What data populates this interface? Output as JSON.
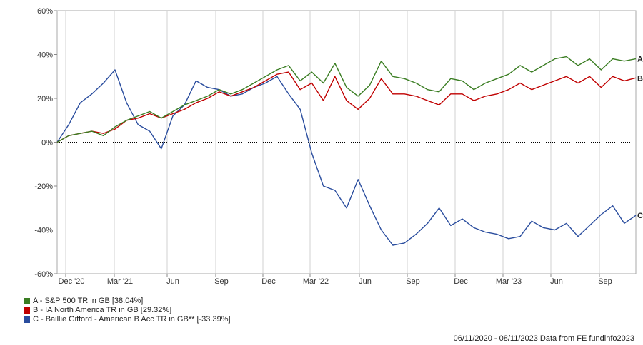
{
  "chart_data": {
    "type": "line",
    "x_tick_labels": [
      "Dec '20",
      "Mar '21",
      "Jun",
      "Sep",
      "Dec",
      "Mar '22",
      "Jun",
      "Sep",
      "Dec",
      "Mar '23",
      "Jun",
      "Sep"
    ],
    "y_tick_labels": [
      "60%",
      "40%",
      "20%",
      "0%",
      "-20%",
      "-40%",
      "-60%"
    ],
    "ylim": [
      -60,
      60
    ],
    "x_range": [
      "2020-11-06",
      "2023-11-08"
    ],
    "grid": "vertical",
    "zero_line": "dotted",
    "legend_position": "bottom-left",
    "series": [
      {
        "name": "A - S&P 500 TR in GB [38.04%]",
        "end_label": "A",
        "color": "#3a7d22",
        "values": [
          [
            0,
            0
          ],
          [
            0.02,
            3
          ],
          [
            0.04,
            4
          ],
          [
            0.06,
            5
          ],
          [
            0.08,
            3
          ],
          [
            0.1,
            7
          ],
          [
            0.12,
            10
          ],
          [
            0.14,
            12
          ],
          [
            0.16,
            14
          ],
          [
            0.18,
            11
          ],
          [
            0.2,
            14
          ],
          [
            0.22,
            17
          ],
          [
            0.24,
            19
          ],
          [
            0.26,
            21
          ],
          [
            0.28,
            24
          ],
          [
            0.3,
            22
          ],
          [
            0.32,
            24
          ],
          [
            0.34,
            27
          ],
          [
            0.36,
            30
          ],
          [
            0.38,
            33
          ],
          [
            0.4,
            35
          ],
          [
            0.42,
            28
          ],
          [
            0.44,
            32
          ],
          [
            0.46,
            27
          ],
          [
            0.48,
            36
          ],
          [
            0.5,
            25
          ],
          [
            0.52,
            21
          ],
          [
            0.54,
            26
          ],
          [
            0.56,
            37
          ],
          [
            0.58,
            30
          ],
          [
            0.6,
            29
          ],
          [
            0.62,
            27
          ],
          [
            0.64,
            24
          ],
          [
            0.66,
            23
          ],
          [
            0.68,
            29
          ],
          [
            0.7,
            28
          ],
          [
            0.72,
            24
          ],
          [
            0.74,
            27
          ],
          [
            0.76,
            29
          ],
          [
            0.78,
            31
          ],
          [
            0.8,
            35
          ],
          [
            0.82,
            32
          ],
          [
            0.84,
            35
          ],
          [
            0.86,
            38
          ],
          [
            0.88,
            39
          ],
          [
            0.9,
            35
          ],
          [
            0.92,
            38
          ],
          [
            0.94,
            33
          ],
          [
            0.96,
            38
          ],
          [
            0.98,
            37
          ],
          [
            1.0,
            38.04
          ]
        ]
      },
      {
        "name": "B - IA North America TR in GB [29.32%]",
        "end_label": "B",
        "color": "#c00000",
        "values": [
          [
            0,
            0
          ],
          [
            0.02,
            3
          ],
          [
            0.04,
            4
          ],
          [
            0.06,
            5
          ],
          [
            0.08,
            4
          ],
          [
            0.1,
            6
          ],
          [
            0.12,
            10
          ],
          [
            0.14,
            11
          ],
          [
            0.16,
            13
          ],
          [
            0.18,
            11
          ],
          [
            0.2,
            13
          ],
          [
            0.22,
            15
          ],
          [
            0.24,
            18
          ],
          [
            0.26,
            20
          ],
          [
            0.28,
            23
          ],
          [
            0.3,
            21
          ],
          [
            0.32,
            23
          ],
          [
            0.34,
            25
          ],
          [
            0.36,
            28
          ],
          [
            0.38,
            31
          ],
          [
            0.4,
            32
          ],
          [
            0.42,
            24
          ],
          [
            0.44,
            27
          ],
          [
            0.46,
            19
          ],
          [
            0.48,
            30
          ],
          [
            0.5,
            19
          ],
          [
            0.52,
            15
          ],
          [
            0.54,
            20
          ],
          [
            0.56,
            29
          ],
          [
            0.58,
            22
          ],
          [
            0.6,
            22
          ],
          [
            0.62,
            21
          ],
          [
            0.64,
            19
          ],
          [
            0.66,
            17
          ],
          [
            0.68,
            22
          ],
          [
            0.7,
            22
          ],
          [
            0.72,
            19
          ],
          [
            0.74,
            21
          ],
          [
            0.76,
            22
          ],
          [
            0.78,
            24
          ],
          [
            0.8,
            27
          ],
          [
            0.82,
            24
          ],
          [
            0.84,
            26
          ],
          [
            0.86,
            28
          ],
          [
            0.88,
            30
          ],
          [
            0.9,
            27
          ],
          [
            0.92,
            30
          ],
          [
            0.94,
            25
          ],
          [
            0.96,
            30
          ],
          [
            0.98,
            28
          ],
          [
            1.0,
            29.32
          ]
        ]
      },
      {
        "name": "C - Baillie Gifford - American B Acc TR in GB** [-33.39%]",
        "end_label": "C",
        "color": "#2a4d9e",
        "values": [
          [
            0,
            0
          ],
          [
            0.02,
            8
          ],
          [
            0.04,
            18
          ],
          [
            0.06,
            22
          ],
          [
            0.08,
            27
          ],
          [
            0.1,
            33
          ],
          [
            0.12,
            18
          ],
          [
            0.14,
            8
          ],
          [
            0.16,
            5
          ],
          [
            0.18,
            -3
          ],
          [
            0.2,
            12
          ],
          [
            0.22,
            17
          ],
          [
            0.24,
            28
          ],
          [
            0.26,
            25
          ],
          [
            0.28,
            24
          ],
          [
            0.3,
            21
          ],
          [
            0.32,
            22
          ],
          [
            0.34,
            25
          ],
          [
            0.36,
            27
          ],
          [
            0.38,
            30
          ],
          [
            0.4,
            22
          ],
          [
            0.42,
            15
          ],
          [
            0.44,
            -5
          ],
          [
            0.46,
            -20
          ],
          [
            0.48,
            -22
          ],
          [
            0.5,
            -30
          ],
          [
            0.52,
            -17
          ],
          [
            0.54,
            -29
          ],
          [
            0.56,
            -40
          ],
          [
            0.58,
            -47
          ],
          [
            0.6,
            -46
          ],
          [
            0.62,
            -42
          ],
          [
            0.64,
            -37
          ],
          [
            0.66,
            -30
          ],
          [
            0.68,
            -38
          ],
          [
            0.7,
            -35
          ],
          [
            0.72,
            -39
          ],
          [
            0.74,
            -41
          ],
          [
            0.76,
            -42
          ],
          [
            0.78,
            -44
          ],
          [
            0.8,
            -43
          ],
          [
            0.82,
            -36
          ],
          [
            0.84,
            -39
          ],
          [
            0.86,
            -40
          ],
          [
            0.88,
            -37
          ],
          [
            0.9,
            -43
          ],
          [
            0.92,
            -38
          ],
          [
            0.94,
            -33
          ],
          [
            0.96,
            -29
          ],
          [
            0.98,
            -37
          ],
          [
            1.0,
            -33.39
          ]
        ]
      }
    ]
  },
  "footer": {
    "text": "06/11/2020 - 08/11/2023 Data from FE fundinfo2023"
  }
}
